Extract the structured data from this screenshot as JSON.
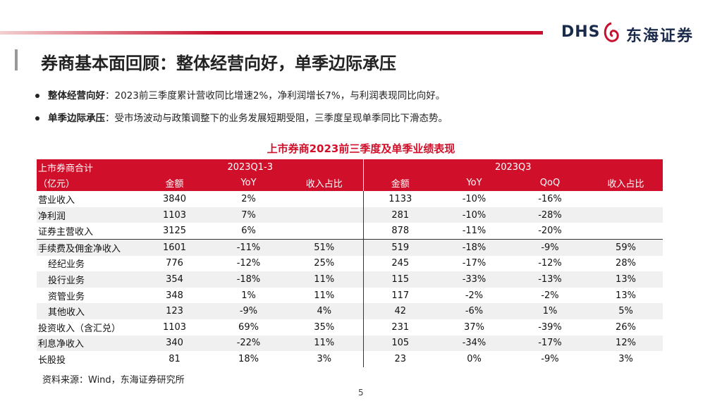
{
  "header": {
    "logo_text": "DHS",
    "logo_name": "东海证券",
    "title": "券商基本面回顾：整体经营向好，单季边际承压"
  },
  "bullets": [
    {
      "label": "整体经营向好",
      "text": "：2023前三季度累计营收同比增速2%，净利润增长7%，与利润表现同比向好。"
    },
    {
      "label": "单季边际承压",
      "text": "：受市场波动与政策调整下的业务发展短期受阻，三季度呈现单季同比下滑态势。"
    }
  ],
  "table": {
    "title": "上市券商2023前三季度及单季业绩表现",
    "group_header": [
      "上市券商合计",
      "2023Q1-3",
      "2023Q3"
    ],
    "columns": [
      "（亿元）",
      "金额",
      "YoY",
      "收入占比",
      "金额",
      "YoY",
      "QoQ",
      "收入占比"
    ],
    "rows": [
      {
        "cells": [
          "营业收入",
          "3840",
          "2%",
          null,
          "1133",
          "-10%",
          "-16%",
          null
        ]
      },
      {
        "cells": [
          "净利润",
          "1103",
          "7%",
          null,
          "281",
          "-10%",
          "-28%",
          null
        ]
      },
      {
        "cells": [
          "证券主营收入",
          "3125",
          "6%",
          null,
          "878",
          "-11%",
          "-20%",
          null
        ]
      },
      {
        "cells": [
          "手续费及佣金净收入",
          "1601",
          "-11%",
          "51%",
          "519",
          "-18%",
          "-9%",
          "59%"
        ]
      },
      {
        "cells": [
          "经纪业务",
          "776",
          "-12%",
          "25%",
          "245",
          "-17%",
          "-12%",
          "28%"
        ],
        "indent": true
      },
      {
        "cells": [
          "投行业务",
          "354",
          "-18%",
          "11%",
          "115",
          "-33%",
          "-13%",
          "13%"
        ],
        "indent": true
      },
      {
        "cells": [
          "资管业务",
          "348",
          "1%",
          "11%",
          "117",
          "-2%",
          "-2%",
          "13%"
        ],
        "indent": true
      },
      {
        "cells": [
          "其他收入",
          "123",
          "-9%",
          "4%",
          "42",
          "-6%",
          "1%",
          "5%"
        ],
        "indent": true
      },
      {
        "cells": [
          "投资收入（含汇兑）",
          "1103",
          "69%",
          "35%",
          "231",
          "37%",
          "-39%",
          "26%"
        ]
      },
      {
        "cells": [
          "利息净收入",
          "340",
          "-22%",
          "11%",
          "105",
          "-34%",
          "-17%",
          "12%"
        ]
      },
      {
        "cells": [
          "长股投",
          "81",
          "18%",
          "3%",
          "23",
          "0%",
          "-9%",
          "3%"
        ]
      }
    ]
  },
  "source": "资料来源：Wind，东海证券研究所",
  "page_number": "5"
}
